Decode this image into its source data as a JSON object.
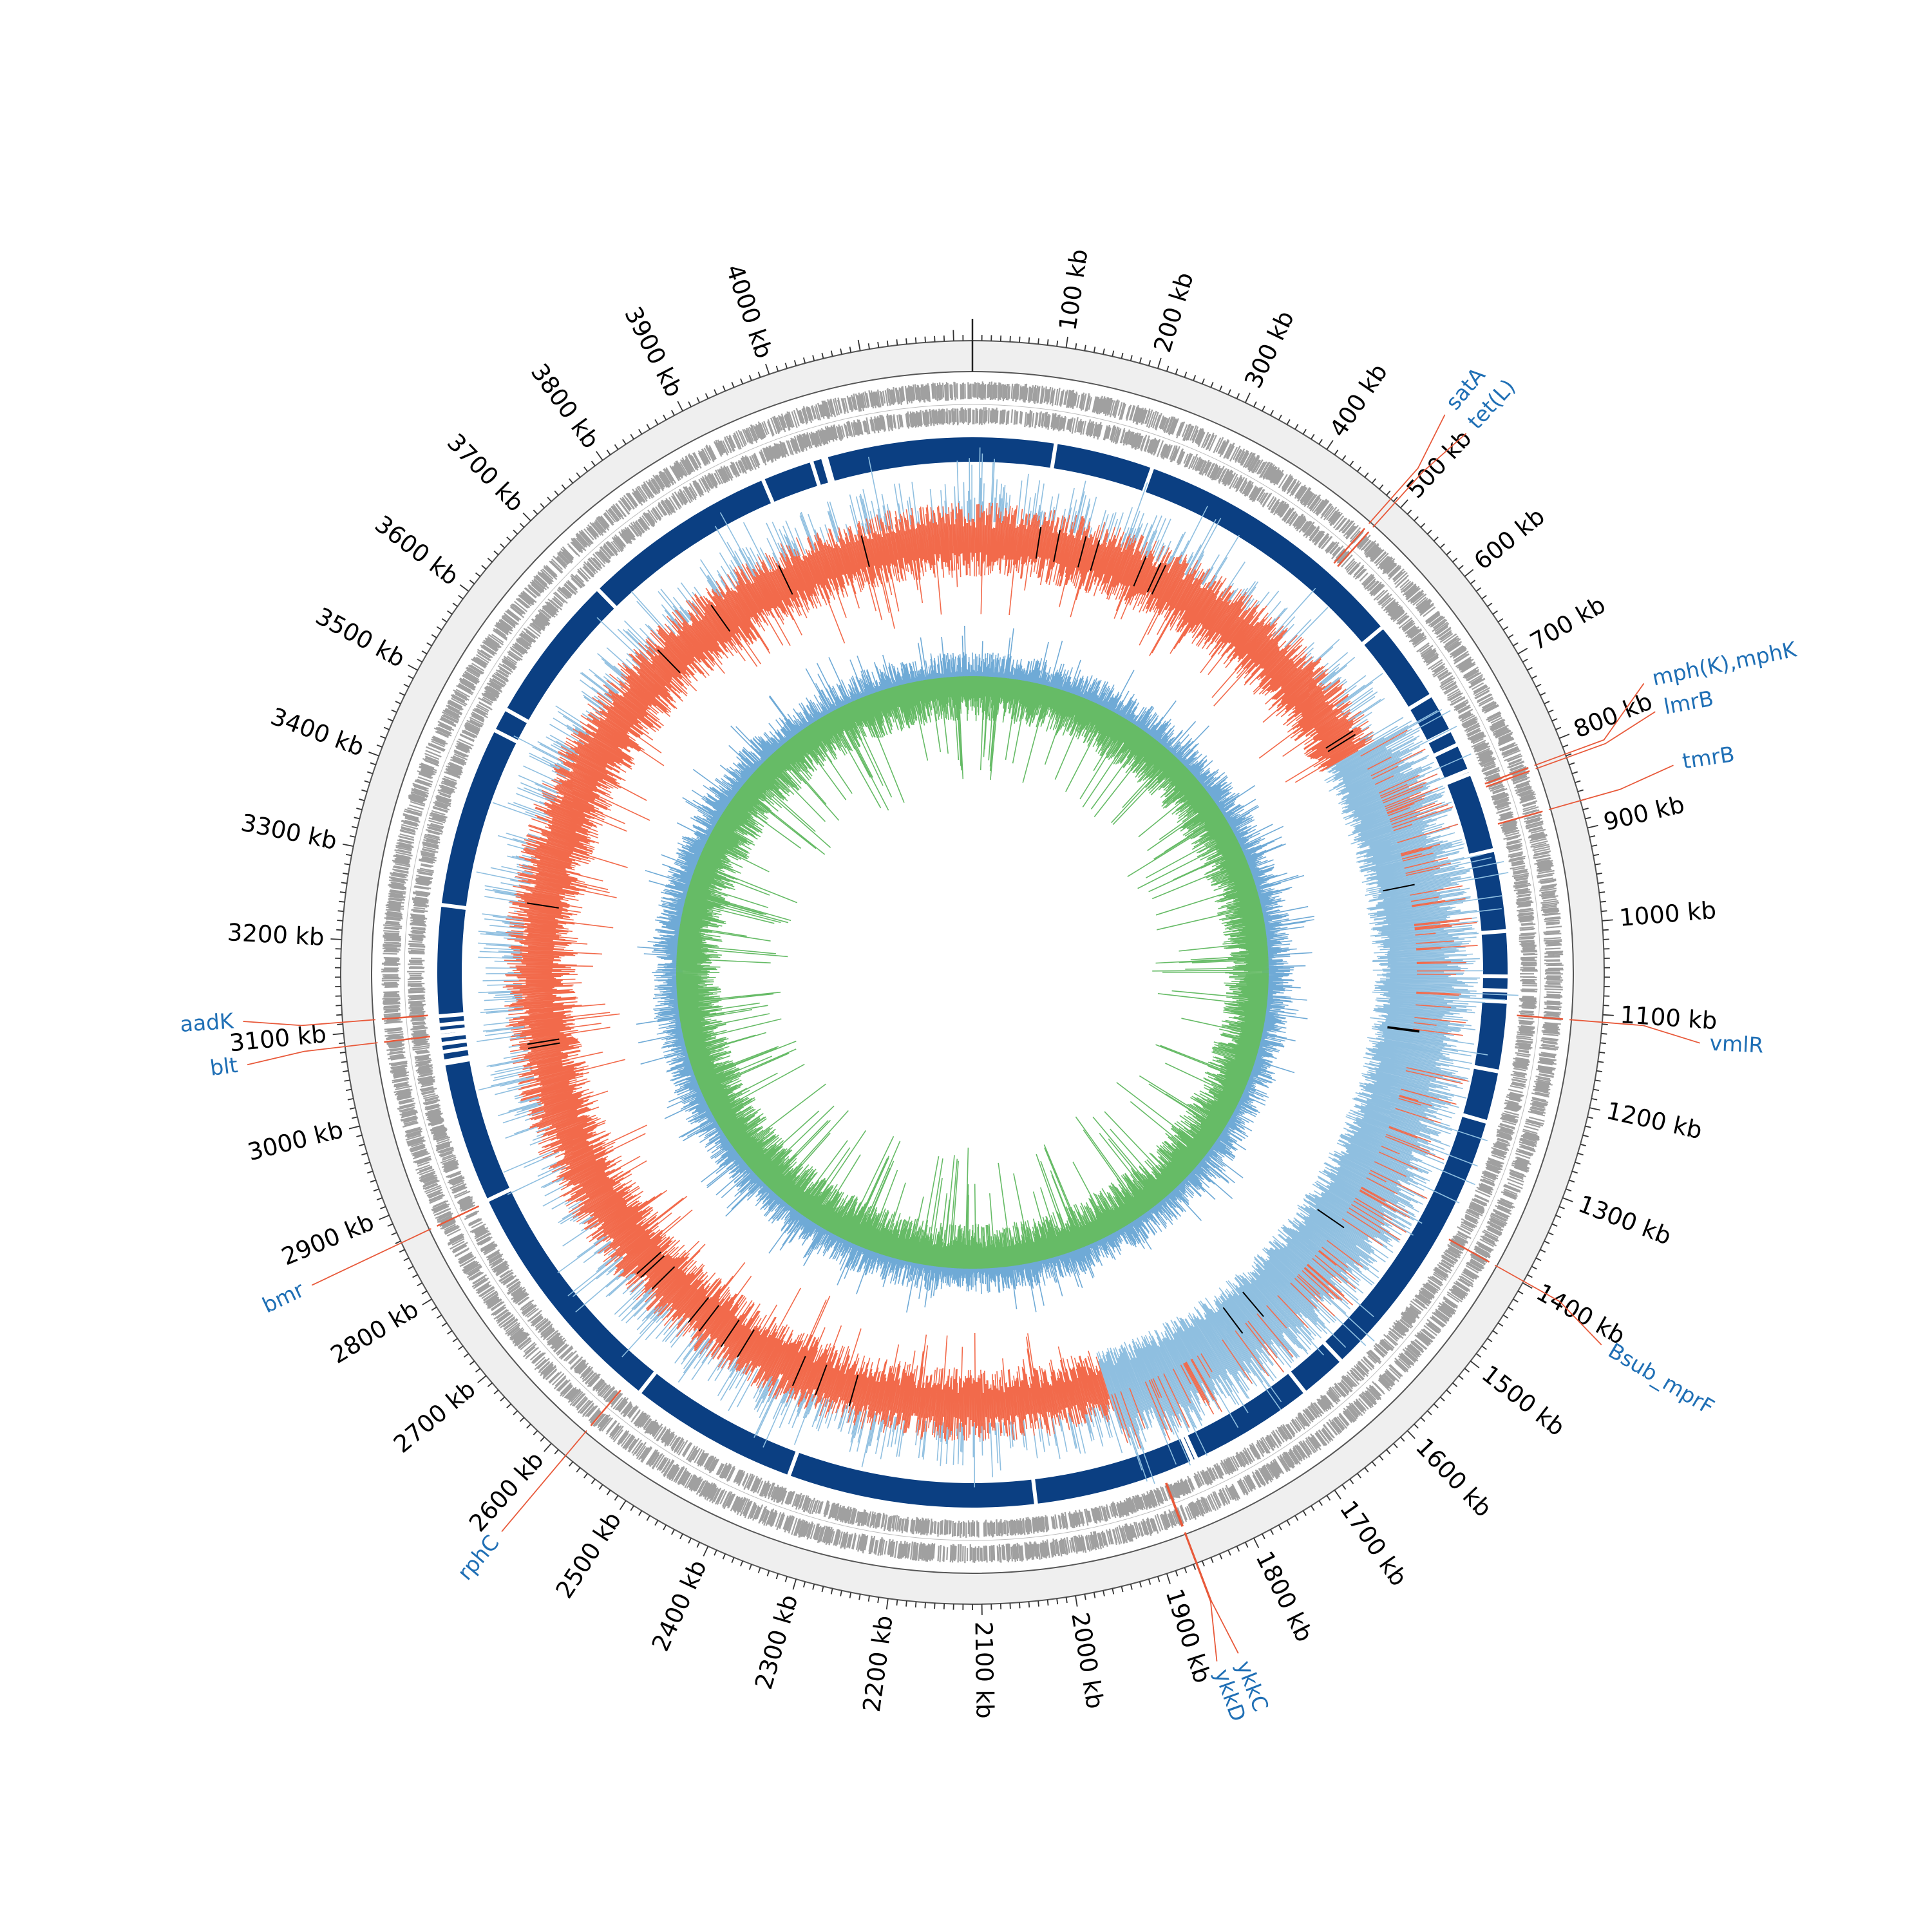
{
  "genome": {
    "length_kb": 4220,
    "major_tick_step_kb": 100,
    "tick_unit": "kb",
    "tick_labels": [
      "100 kb",
      "200 kb",
      "300 kb",
      "400 kb",
      "500 kb",
      "600 kb",
      "700 kb",
      "800 kb",
      "900 kb",
      "1000 kb",
      "1100 kb",
      "1200 kb",
      "1300 kb",
      "1400 kb",
      "1500 kb",
      "1600 kb",
      "1700 kb",
      "1800 kb",
      "1900 kb",
      "2000 kb",
      "2100 kb",
      "2200 kb",
      "2300 kb",
      "2400 kb",
      "2500 kb",
      "2600 kb",
      "2700 kb",
      "2800 kb",
      "2900 kb",
      "3000 kb",
      "3100 kb",
      "3200 kb",
      "3300 kb",
      "3400 kb",
      "3500 kb",
      "3600 kb",
      "3700 kb",
      "3800 kb",
      "3900 kb",
      "4000 kb"
    ]
  },
  "annotations": [
    {
      "label": "satA",
      "position_kb": 486
    },
    {
      "label": "tet(L)",
      "position_kb": 492
    },
    {
      "label": "mph(K),mphK",
      "position_kb": 818
    },
    {
      "label": "lmrB",
      "position_kb": 822
    },
    {
      "label": "tmrB",
      "position_kb": 870
    },
    {
      "label": "vmlR",
      "position_kb": 1108
    },
    {
      "label": "Bsub_mprF",
      "position_kb": 1398
    },
    {
      "label": "ykkC",
      "position_kb": 1866
    },
    {
      "label": "ykkD",
      "position_kb": 1867
    },
    {
      "label": "rphC",
      "position_kb": 2580
    },
    {
      "label": "bmr",
      "position_kb": 2868
    },
    {
      "label": "blt",
      "position_kb": 3086
    },
    {
      "label": "aadK",
      "position_kb": 3112
    }
  ],
  "tracks": {
    "contig_gaps_kb": [
      105,
      230,
      585,
      690,
      740,
      760,
      795,
      800,
      900,
      1003,
      1060,
      1078,
      1092,
      1180,
      1245,
      1600,
      1660,
      1820,
      1826,
      2030,
      2345,
      2560,
      2870,
      3050,
      3053,
      3065,
      3075,
      3085,
      3090,
      3099,
      3110,
      3250,
      3480,
      3510,
      3700,
      3950,
      4015,
      4030,
      4034
    ]
  },
  "colors": {
    "outer_ring": "#efefef",
    "gene_features": "#a0a0a0",
    "annotation_lines": "#e8593a",
    "annotation_text": "#1f6fb5",
    "contigs": "#0b3f82",
    "gc_content_low": "#f26a4b",
    "gc_content_high": "#8fbfe0",
    "gc_skew_pos": "#66bb66",
    "gc_skew_neg": "#6faad6",
    "marker": "#000000"
  }
}
